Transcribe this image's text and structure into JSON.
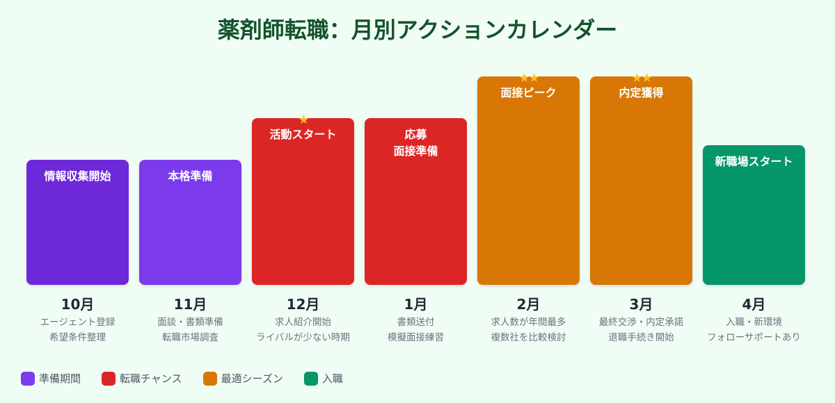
{
  "title": "薬剤師転職：月別アクションカレンダー",
  "chart_data": {
    "type": "bar",
    "title": "薬剤師転職：月別アクションカレンダー",
    "categories": [
      "10月",
      "11月",
      "12月",
      "1月",
      "2月",
      "3月",
      "4月"
    ],
    "values": [
      60,
      60,
      80,
      80,
      100,
      100,
      67
    ],
    "ylim": [
      0,
      100
    ],
    "grid": false,
    "legend_placement": "bottom-left",
    "bars": [
      {
        "month": "10月",
        "label": "情報収集開始",
        "stars": 0,
        "category": "準備期間",
        "color": "#6d28d9",
        "desc": "エージェント登録\n希望条件整理"
      },
      {
        "month": "11月",
        "label": "本格準備",
        "stars": 0,
        "category": "準備期間",
        "color": "#7c3aed",
        "desc": "面談・書類準備\n転職市場調査"
      },
      {
        "month": "12月",
        "label": "活動スタート",
        "stars": 1,
        "category": "転職チャンス",
        "color": "#dc2626",
        "desc": "求人紹介開始\nライバルが少ない時期"
      },
      {
        "month": "1月",
        "label": "応募\n面接準備",
        "stars": 0,
        "category": "転職チャンス",
        "color": "#dc2626",
        "desc": "書類送付\n模擬面接練習"
      },
      {
        "month": "2月",
        "label": "面接ピーク",
        "stars": 2,
        "category": "最適シーズン",
        "color": "#d97706",
        "desc": "求人数が年間最多\n複数社を比較検討"
      },
      {
        "month": "3月",
        "label": "内定獲得",
        "stars": 2,
        "category": "最適シーズン",
        "color": "#d97706",
        "desc": "最終交渉・内定承諾\n退職手続き開始"
      },
      {
        "month": "4月",
        "label": "新職場スタート",
        "stars": 0,
        "category": "入職",
        "color": "#059669",
        "desc": "入職・新環境\nフォローサポートあり"
      }
    ],
    "legend": [
      {
        "name": "準備期間",
        "color": "#7c3aed"
      },
      {
        "name": "転職チャンス",
        "color": "#dc2626"
      },
      {
        "name": "最適シーズン",
        "color": "#d97706"
      },
      {
        "name": "入職",
        "color": "#059669"
      }
    ]
  }
}
